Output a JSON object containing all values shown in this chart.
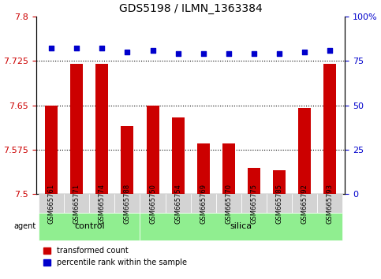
{
  "title": "GDS5198 / ILMN_1363384",
  "samples": [
    "GSM665761",
    "GSM665771",
    "GSM665774",
    "GSM665788",
    "GSM665750",
    "GSM665754",
    "GSM665769",
    "GSM665770",
    "GSM665775",
    "GSM665785",
    "GSM665792",
    "GSM665793"
  ],
  "groups": [
    "control",
    "control",
    "control",
    "control",
    "silica",
    "silica",
    "silica",
    "silica",
    "silica",
    "silica",
    "silica",
    "silica"
  ],
  "transformed_count": [
    7.65,
    7.72,
    7.72,
    7.615,
    7.65,
    7.63,
    7.585,
    7.585,
    7.545,
    7.54,
    7.645,
    7.72
  ],
  "percentile_rank": [
    82,
    82,
    82,
    80,
    81,
    79,
    79,
    79,
    79,
    79,
    80,
    81
  ],
  "ymin": 7.5,
  "ymax": 7.8,
  "y_ticks": [
    7.5,
    7.575,
    7.65,
    7.725,
    7.8
  ],
  "y_tick_labels": [
    "7.5",
    "7.575",
    "7.65",
    "7.725",
    "7.8"
  ],
  "y2min": 0,
  "y2max": 100,
  "y2_ticks": [
    0,
    25,
    50,
    75,
    100
  ],
  "y2_tick_labels": [
    "0",
    "25",
    "50",
    "75",
    "100%"
  ],
  "bar_color": "#cc0000",
  "dot_color": "#0000cc",
  "control_color": "#90ee90",
  "silica_color": "#90ee90",
  "group_bg": "#90ee90",
  "xlabel_color": "#cc0000",
  "ylabel_color": "#cc0000",
  "ylabel2_color": "#0000cc",
  "legend_items": [
    "transformed count",
    "percentile rank within the sample"
  ]
}
